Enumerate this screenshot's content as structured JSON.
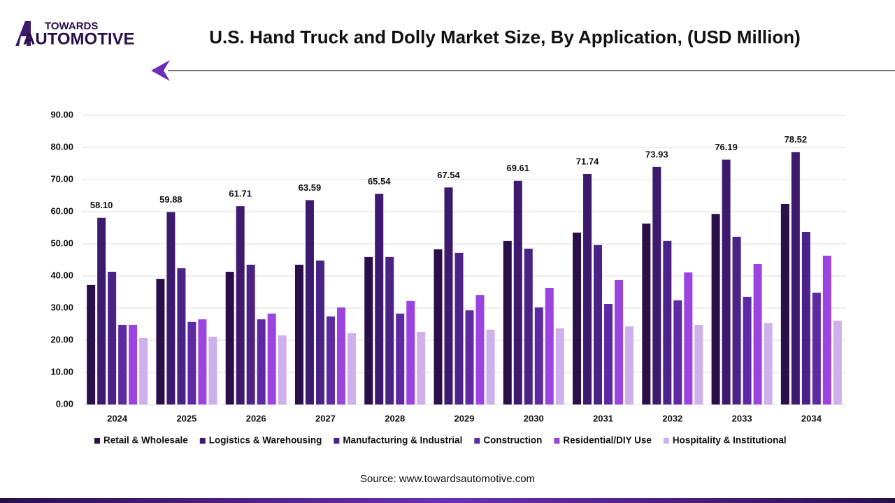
{
  "logo": {
    "top": "TOWARDS",
    "bottom": "AUTOMOTIVE"
  },
  "chart_data": {
    "type": "bar",
    "title": "U.S. Hand Truck and Dolly Market Size, By Application, (USD Million)",
    "source": "Source: www.towardsautomotive.com",
    "categories": [
      "2024",
      "2025",
      "2026",
      "2027",
      "2028",
      "2029",
      "2030",
      "2031",
      "2032",
      "2033",
      "2034"
    ],
    "ylim": [
      0,
      90
    ],
    "yticks": [
      {
        "value": 0,
        "label": "0.00"
      },
      {
        "value": 10,
        "label": "10.00"
      },
      {
        "value": 20,
        "label": "20.00"
      },
      {
        "value": 30,
        "label": "30.00"
      },
      {
        "value": 40,
        "label": "40.00"
      },
      {
        "value": 50,
        "label": "50.00"
      },
      {
        "value": 60,
        "label": "60.00"
      },
      {
        "value": 70,
        "label": "70.00"
      },
      {
        "value": 80,
        "label": "80.00"
      },
      {
        "value": 90,
        "label": "90.00"
      }
    ],
    "grid": true,
    "legend": "bottom",
    "series": [
      {
        "name": "Retail & Wholesale",
        "color": "#2a0f4a",
        "values": [
          37.2,
          39.1,
          41.3,
          43.5,
          45.9,
          48.3,
          50.9,
          53.5,
          56.3,
          59.3,
          62.4
        ]
      },
      {
        "name": "Logistics & Warehousing",
        "color": "#3d1a6e",
        "values": [
          58.1,
          59.88,
          61.71,
          63.59,
          65.54,
          67.54,
          69.61,
          71.74,
          73.93,
          76.19,
          78.52
        ],
        "value_labels": [
          "58.10",
          "59.88",
          "61.71",
          "63.59",
          "65.54",
          "67.54",
          "69.61",
          "71.74",
          "73.93",
          "76.19",
          "78.52"
        ]
      },
      {
        "name": "Manufacturing & Industrial",
        "color": "#4b2387",
        "values": [
          41.3,
          42.4,
          43.5,
          44.8,
          45.9,
          47.2,
          48.5,
          49.6,
          50.9,
          52.2,
          53.7
        ]
      },
      {
        "name": "Construction",
        "color": "#5e2aa3",
        "values": [
          24.8,
          25.7,
          26.5,
          27.4,
          28.3,
          29.3,
          30.2,
          31.3,
          32.4,
          33.5,
          34.8
        ]
      },
      {
        "name": "Residential/DIY Use",
        "color": "#9b44e0",
        "values": [
          24.8,
          26.5,
          28.3,
          30.2,
          32.2,
          34.1,
          36.3,
          38.7,
          41.1,
          43.7,
          46.3
        ]
      },
      {
        "name": "Hospitality & Institutional",
        "color": "#cdb0ec",
        "values": [
          20.7,
          21.1,
          21.5,
          22.2,
          22.6,
          23.3,
          23.7,
          24.3,
          24.8,
          25.4,
          26.1
        ]
      }
    ]
  }
}
